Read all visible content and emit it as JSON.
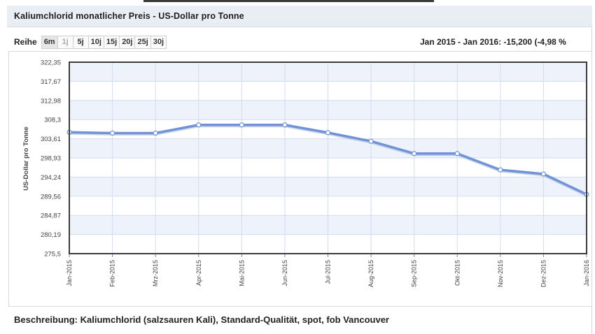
{
  "header": {
    "title": "Kaliumchlorid monatlicher Preis - US-Dollar pro Tonne"
  },
  "range_selector": {
    "label": "Reihe",
    "buttons": [
      {
        "label": "6m",
        "state": "active"
      },
      {
        "label": "1j",
        "state": "disabled"
      },
      {
        "label": "5j",
        "state": "normal"
      },
      {
        "label": "10j",
        "state": "normal"
      },
      {
        "label": "15j",
        "state": "normal"
      },
      {
        "label": "20j",
        "state": "normal"
      },
      {
        "label": "25j",
        "state": "normal"
      },
      {
        "label": "30j",
        "state": "normal"
      }
    ]
  },
  "change_summary": "Jan 2015 - Jan 2016: -15,200 (-4,98 %",
  "footer": {
    "description": "Beschreibung: Kaliumchlorid (salzsauren Kali), Standard-Qualität, spot, fob Vancouver"
  },
  "colors": {
    "series": "#6f93d6",
    "series_shadow": "#b9c6dd",
    "band": "#eef2fb",
    "grid": "#d3dcee",
    "axis": "#3c3c3c"
  },
  "chart_data": {
    "type": "line",
    "title": "Kaliumchlorid monatlicher Preis - US-Dollar pro Tonne",
    "xlabel": "",
    "ylabel": "US-Dollar pro Tonne",
    "categories": [
      "Jan-2015",
      "Feb-2015",
      "Mrz-2015",
      "Apr-2015",
      "Mai-2015",
      "Jun-2015",
      "Jul-2015",
      "Aug-2015",
      "Sep-2015",
      "Okt-2015",
      "Nov-2015",
      "Dez-2015",
      "Jan-2016"
    ],
    "series": [
      {
        "name": "Kaliumchlorid",
        "values": [
          305.2,
          305.0,
          305.0,
          307.0,
          307.0,
          307.0,
          305.1,
          303.0,
          300.0,
          300.0,
          296.0,
          295.0,
          290.0
        ]
      }
    ],
    "ylim": [
      275.5,
      322.35
    ],
    "yticks": [
      "275,5",
      "280,19",
      "284,87",
      "289,56",
      "294,24",
      "298,93",
      "303,61",
      "308,3",
      "312,98",
      "317,67",
      "322,35"
    ],
    "grid": true,
    "legend": "none"
  }
}
